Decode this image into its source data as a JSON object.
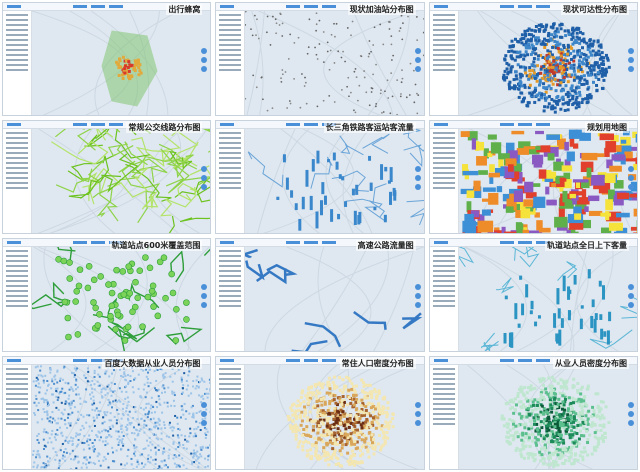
{
  "tiles": [
    {
      "title": "出行蜂窝"
    },
    {
      "title": "现状加油站分布图"
    },
    {
      "title": "现状可达性分布图"
    },
    {
      "title": "常规公交线路分布图"
    },
    {
      "title": "长三角铁路客运站客流量"
    },
    {
      "title": "规划用地图"
    },
    {
      "title": "轨道站点600米覆盖范围"
    },
    {
      "title": "高速公路流量图"
    },
    {
      "title": "轨道站点全日上下客量"
    },
    {
      "title": "百度大数据从业人员分布图"
    },
    {
      "title": "常住人口密度分布图"
    },
    {
      "title": "从业人员密度分布图"
    }
  ]
}
